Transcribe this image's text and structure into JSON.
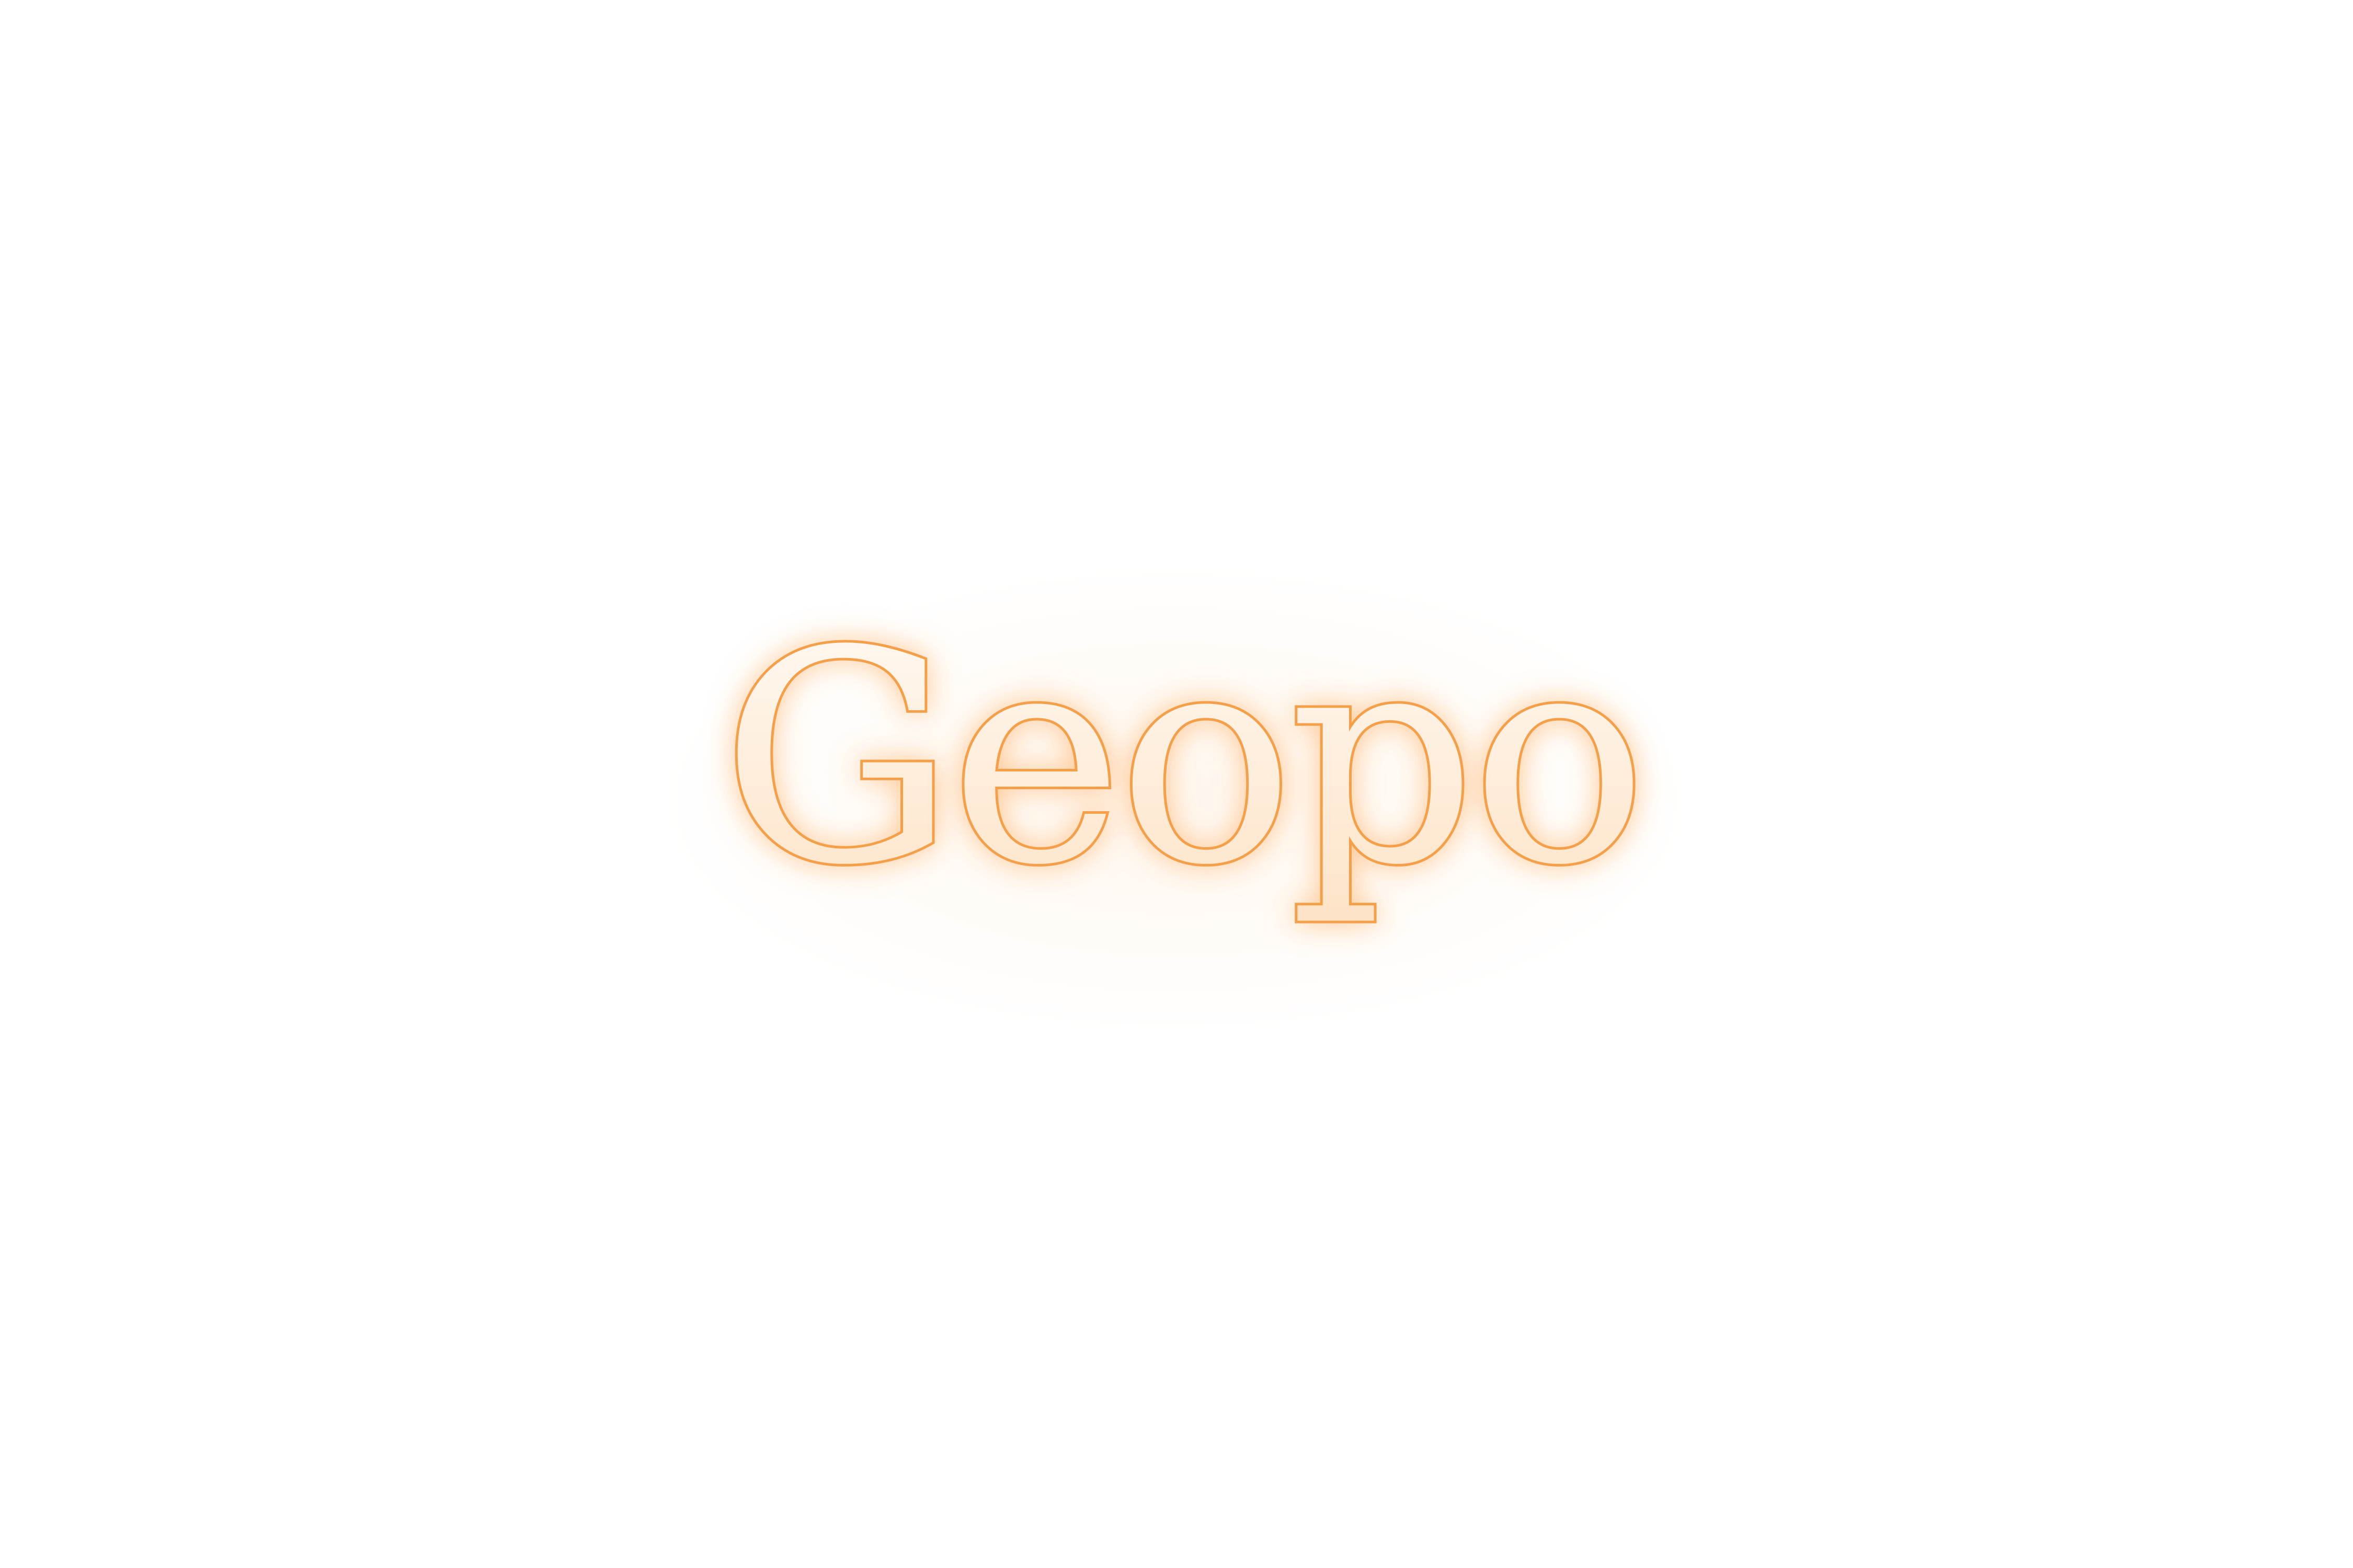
{
  "logo": {
    "wordmark": "Geopo",
    "colors": {
      "stroke": "#f5a04a",
      "glow": "#ff9a3c",
      "fill_top": "#fffaf5",
      "fill_bottom": "#fde3c6"
    }
  }
}
